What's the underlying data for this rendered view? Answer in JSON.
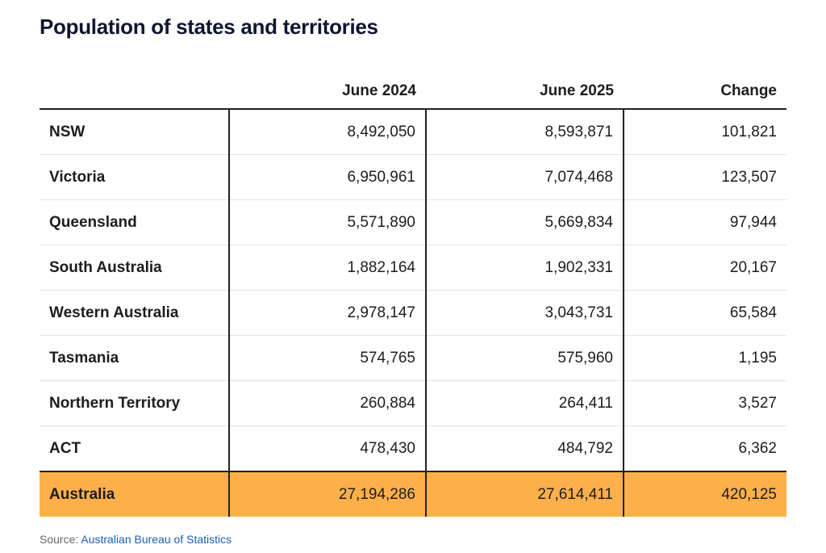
{
  "chart_data": {
    "type": "table",
    "title": "Population of states and territories",
    "columns": [
      "",
      "June 2024",
      "June 2025",
      "Change"
    ],
    "rows": [
      [
        "NSW",
        "8,492,050",
        "8,593,871",
        "101,821"
      ],
      [
        "Victoria",
        "6,950,961",
        "7,074,468",
        "123,507"
      ],
      [
        "Queensland",
        "5,571,890",
        "5,669,834",
        "97,944"
      ],
      [
        "South Australia",
        "1,882,164",
        "1,902,331",
        "20,167"
      ],
      [
        "Western Australia",
        "2,978,147",
        "3,043,731",
        "65,584"
      ],
      [
        "Tasmania",
        "574,765",
        "575,960",
        "1,195"
      ],
      [
        "Northern Territory",
        "260,884",
        "264,411",
        "3,527"
      ],
      [
        "ACT",
        "478,430",
        "484,792",
        "6,362"
      ]
    ],
    "total_row": [
      "Australia",
      "27,194,286",
      "27,614,411",
      "420,125"
    ],
    "highlight_color": "#fdaf4a"
  },
  "source": {
    "label": "Source:",
    "link_text": "Australian Bureau of Statistics"
  }
}
